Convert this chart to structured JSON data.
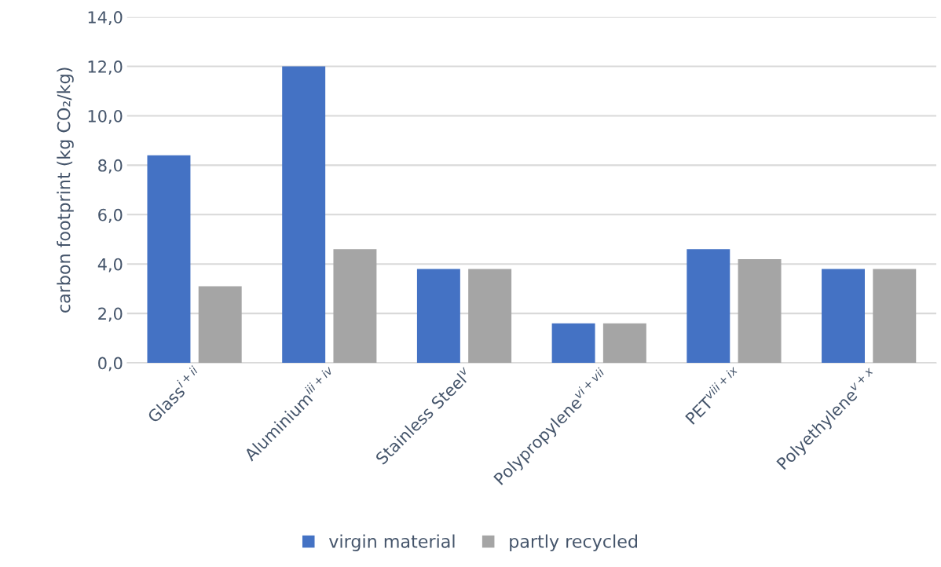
{
  "chart_data": {
    "type": "bar",
    "ylabel": "carbon footprint (kg CO₂/kg)",
    "categories": [
      "Glass$^{i+ii}$",
      "Aluminium$^{iii+iv}$",
      "Stainless Steel$^{v}$",
      "Polypropylene$^{vi+vii}$",
      "PET$^{viii+ix}$",
      "Polyethylene$^{v+x}$"
    ],
    "series": [
      {
        "name": "virgin material",
        "color": "#4472c4",
        "values": [
          8.4,
          12.0,
          3.8,
          1.6,
          4.6,
          3.8
        ]
      },
      {
        "name": "partly recycled",
        "color": "#a5a5a5",
        "values": [
          3.1,
          4.6,
          3.8,
          1.6,
          4.2,
          3.8
        ]
      }
    ],
    "ylim": [
      0,
      14
    ],
    "yticks": [
      {
        "value": 0,
        "label": "0,0"
      },
      {
        "value": 2,
        "label": "2,0"
      },
      {
        "value": 4,
        "label": "4,0"
      },
      {
        "value": 6,
        "label": "6,0"
      },
      {
        "value": 8,
        "label": "8,0"
      },
      {
        "value": 10,
        "label": "10,0"
      },
      {
        "value": 12,
        "label": "12,0"
      },
      {
        "value": 14,
        "label": "14,0"
      }
    ],
    "grid": "y",
    "legend": "bottom"
  }
}
